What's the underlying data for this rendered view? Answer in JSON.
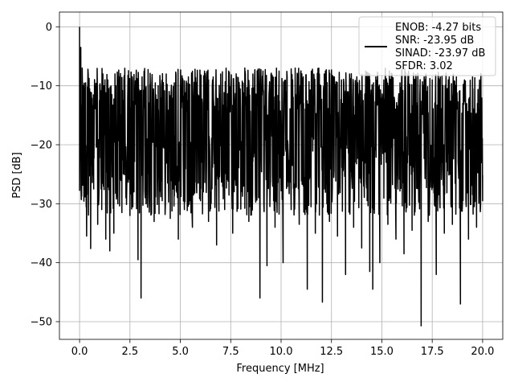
{
  "chart_data": {
    "type": "line",
    "title": "",
    "xlabel": "Frequency [MHz]",
    "ylabel": "PSD [dB]",
    "xlim": [
      -1.0,
      21.0
    ],
    "ylim": [
      -53.0,
      2.5
    ],
    "xticks": [
      0.0,
      2.5,
      5.0,
      7.5,
      10.0,
      12.5,
      15.0,
      17.5,
      20.0
    ],
    "xtick_labels": [
      "0.0",
      "2.5",
      "5.0",
      "7.5",
      "10.0",
      "12.5",
      "15.0",
      "17.5",
      "20.0"
    ],
    "yticks": [
      0,
      -10,
      -20,
      -30,
      -40,
      -50
    ],
    "ytick_labels": [
      "0",
      "−10",
      "−20",
      "−30",
      "−40",
      "−50"
    ],
    "grid": true,
    "legend_placement": "upper-right",
    "legend_lines": [
      "ENOB: -4.27 bits",
      "SNR: -23.95 dB",
      "SINAD: -23.97 dB",
      "SFDR: 3.02"
    ],
    "series": [
      {
        "color": "#000000",
        "x_range": [
          0.0,
          20.0
        ],
        "points": [
          [
            0.0,
            0.0
          ],
          [
            0.03,
            -13.5
          ],
          [
            0.06,
            -3.5
          ],
          [
            0.1,
            -22.0
          ],
          [
            0.13,
            -7.0
          ],
          [
            0.17,
            -24.5
          ],
          [
            0.2,
            -11.0
          ],
          [
            0.25,
            -26.0
          ],
          [
            0.3,
            -9.5
          ],
          [
            0.35,
            -35.5
          ],
          [
            0.4,
            -12.0
          ],
          [
            0.45,
            -28.0
          ],
          [
            0.5,
            -10.5
          ],
          [
            0.55,
            -37.6
          ],
          [
            0.6,
            -14.0
          ],
          [
            0.7,
            -27.5
          ],
          [
            0.8,
            -11.0
          ],
          [
            0.9,
            -33.5
          ],
          [
            1.0,
            -12.5
          ],
          [
            1.1,
            -31.0
          ],
          [
            1.2,
            -10.0
          ],
          [
            1.3,
            -36.0
          ],
          [
            1.4,
            -9.0
          ],
          [
            1.5,
            -38.0
          ],
          [
            1.6,
            -11.5
          ],
          [
            1.7,
            -35.0
          ],
          [
            1.8,
            -10.0
          ],
          [
            1.9,
            -30.0
          ],
          [
            2.0,
            -8.5
          ],
          [
            2.1,
            -31.5
          ],
          [
            2.2,
            -11.0
          ],
          [
            2.3,
            -29.0
          ],
          [
            2.4,
            -9.0
          ],
          [
            2.5,
            -32.0
          ],
          [
            2.6,
            -10.5
          ],
          [
            2.7,
            -28.0
          ],
          [
            2.8,
            -9.5
          ],
          [
            2.9,
            -39.5
          ],
          [
            3.0,
            -11.0
          ],
          [
            3.05,
            -46.0
          ],
          [
            3.1,
            -8.5
          ],
          [
            3.3,
            -30.0
          ],
          [
            3.5,
            -9.5
          ],
          [
            3.7,
            -33.0
          ],
          [
            3.9,
            -10.0
          ],
          [
            4.1,
            -29.5
          ],
          [
            4.3,
            -8.0
          ],
          [
            4.5,
            -32.5
          ],
          [
            4.7,
            -9.5
          ],
          [
            4.9,
            -36.0
          ],
          [
            5.0,
            -10.5
          ],
          [
            5.2,
            -31.0
          ],
          [
            5.4,
            -8.5
          ],
          [
            5.6,
            -34.0
          ],
          [
            5.8,
            -9.5
          ],
          [
            6.0,
            -29.5
          ],
          [
            6.2,
            -7.5
          ],
          [
            6.4,
            -33.0
          ],
          [
            6.6,
            -9.0
          ],
          [
            6.8,
            -37.0
          ],
          [
            7.0,
            -8.0
          ],
          [
            7.2,
            -31.0
          ],
          [
            7.4,
            -7.5
          ],
          [
            7.6,
            -35.0
          ],
          [
            7.8,
            -8.5
          ],
          [
            8.0,
            -30.5
          ],
          [
            8.2,
            -7.0
          ],
          [
            8.4,
            -33.0
          ],
          [
            8.6,
            -8.0
          ],
          [
            8.8,
            -29.0
          ],
          [
            8.95,
            -46.0
          ],
          [
            9.1,
            -7.5
          ],
          [
            9.3,
            -40.5
          ],
          [
            9.5,
            -8.0
          ],
          [
            9.7,
            -34.0
          ],
          [
            9.9,
            -7.5
          ],
          [
            10.1,
            -40.0
          ],
          [
            10.3,
            -8.5
          ],
          [
            10.5,
            -31.0
          ],
          [
            10.7,
            -7.0
          ],
          [
            10.9,
            -33.5
          ],
          [
            11.1,
            -8.5
          ],
          [
            11.3,
            -44.5
          ],
          [
            11.5,
            -7.5
          ],
          [
            11.7,
            -35.0
          ],
          [
            11.9,
            -8.0
          ],
          [
            12.05,
            -46.7
          ],
          [
            12.2,
            -7.5
          ],
          [
            12.4,
            -33.0
          ],
          [
            12.6,
            -8.5
          ],
          [
            12.8,
            -35.5
          ],
          [
            13.0,
            -9.0
          ],
          [
            13.2,
            -42.0
          ],
          [
            13.4,
            -8.0
          ],
          [
            13.6,
            -34.0
          ],
          [
            13.8,
            -9.5
          ],
          [
            14.0,
            -37.5
          ],
          [
            14.2,
            -7.5
          ],
          [
            14.4,
            -41.5
          ],
          [
            14.55,
            -44.5
          ],
          [
            14.7,
            -8.5
          ],
          [
            14.9,
            -40.0
          ],
          [
            15.1,
            -9.0
          ],
          [
            15.3,
            -33.5
          ],
          [
            15.5,
            -8.0
          ],
          [
            15.7,
            -36.0
          ],
          [
            15.9,
            -9.5
          ],
          [
            16.1,
            -38.5
          ],
          [
            16.3,
            -8.0
          ],
          [
            16.5,
            -34.5
          ],
          [
            16.7,
            -9.0
          ],
          [
            16.95,
            -50.7
          ],
          [
            17.1,
            -8.5
          ],
          [
            17.3,
            -33.0
          ],
          [
            17.5,
            -9.0
          ],
          [
            17.7,
            -42.0
          ],
          [
            17.9,
            -8.5
          ],
          [
            18.1,
            -35.0
          ],
          [
            18.3,
            -9.0
          ],
          [
            18.5,
            -33.5
          ],
          [
            18.7,
            -8.5
          ],
          [
            18.9,
            -47.0
          ],
          [
            19.1,
            -9.0
          ],
          [
            19.3,
            -36.0
          ],
          [
            19.5,
            -8.5
          ],
          [
            19.7,
            -34.0
          ],
          [
            19.85,
            -9.0
          ],
          [
            20.0,
            -29.5
          ]
        ],
        "noise_floor": -28,
        "noise_peak": -7
      }
    ]
  }
}
